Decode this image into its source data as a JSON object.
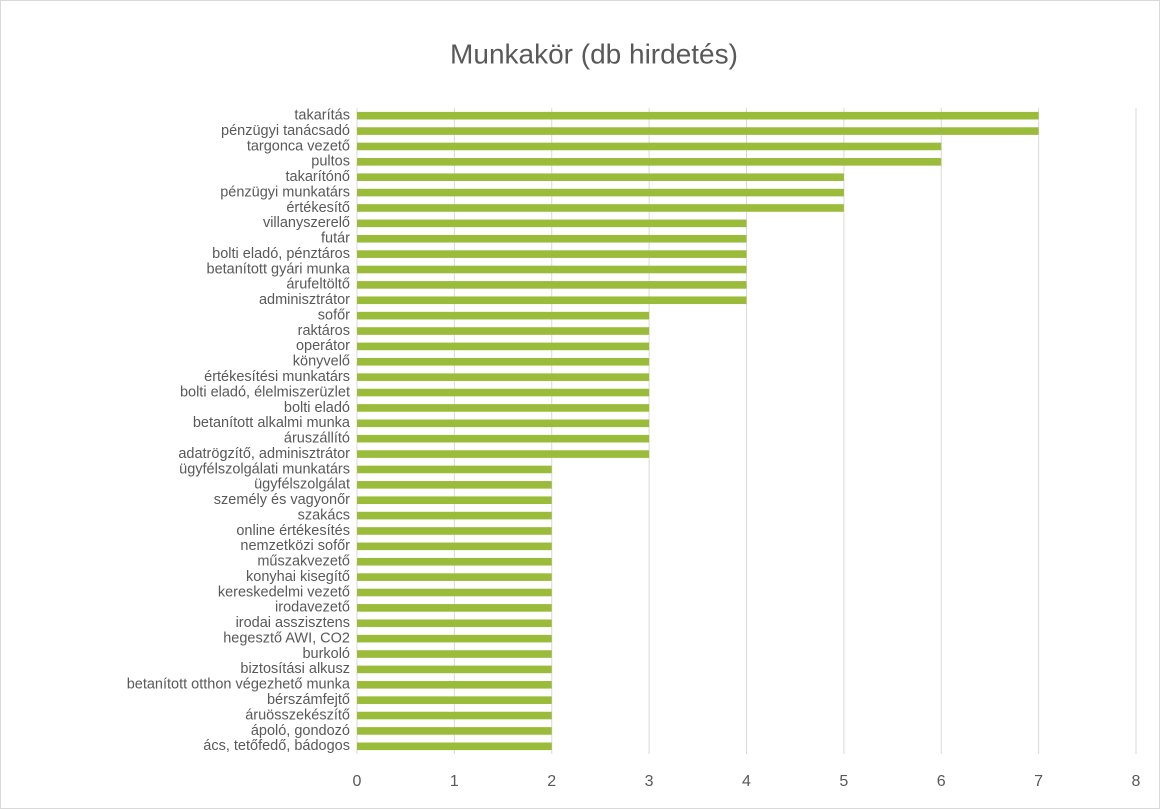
{
  "chart_data": {
    "type": "barh",
    "title": "Munkakör (db hirdetés)",
    "categories": [
      "takarítás",
      "pénzügyi tanácsadó",
      "targonca vezető",
      "pultos",
      "takarítónő",
      "pénzügyi munkatárs",
      "értékesítő",
      "villanyszerelő",
      "futár",
      "bolti eladó, pénztáros",
      "betanított gyári munka",
      "árufeltöltő",
      "adminisztrátor",
      "sofőr",
      "raktáros",
      "operátor",
      "könyvelő",
      "értékesítési munkatárs",
      "bolti eladó, élelmiszerüzlet",
      "bolti eladó",
      "betanított alkalmi munka",
      "áruszállító",
      "adatrögzítő, adminisztrátor",
      "ügyfélszolgálati munkatárs",
      "ügyfélszolgálat",
      "személy és vagyonőr",
      "szakács",
      "online értékesítés",
      "nemzetközi sofőr",
      "műszakvezető",
      "konyhai kisegítő",
      "kereskedelmi vezető",
      "irodavezető",
      "irodai asszisztens",
      "hegesztő AWI, CO2",
      "burkoló",
      "biztosítási alkusz",
      "betanított otthon végezhető munka",
      "bérszámfejtő",
      "áruösszekészítő",
      "ápoló, gondozó",
      "ács, tetőfedő, bádogos"
    ],
    "values": [
      7,
      7,
      6,
      6,
      5,
      5,
      5,
      4,
      4,
      4,
      4,
      4,
      4,
      3,
      3,
      3,
      3,
      3,
      3,
      3,
      3,
      3,
      3,
      2,
      2,
      2,
      2,
      2,
      2,
      2,
      2,
      2,
      2,
      2,
      2,
      2,
      2,
      2,
      2,
      2,
      2,
      2
    ],
    "color": "#9bbb3a",
    "xlim": [
      0,
      8
    ],
    "xticks": [
      0,
      1,
      2,
      3,
      4,
      5,
      6,
      7,
      8
    ],
    "grid": true
  }
}
